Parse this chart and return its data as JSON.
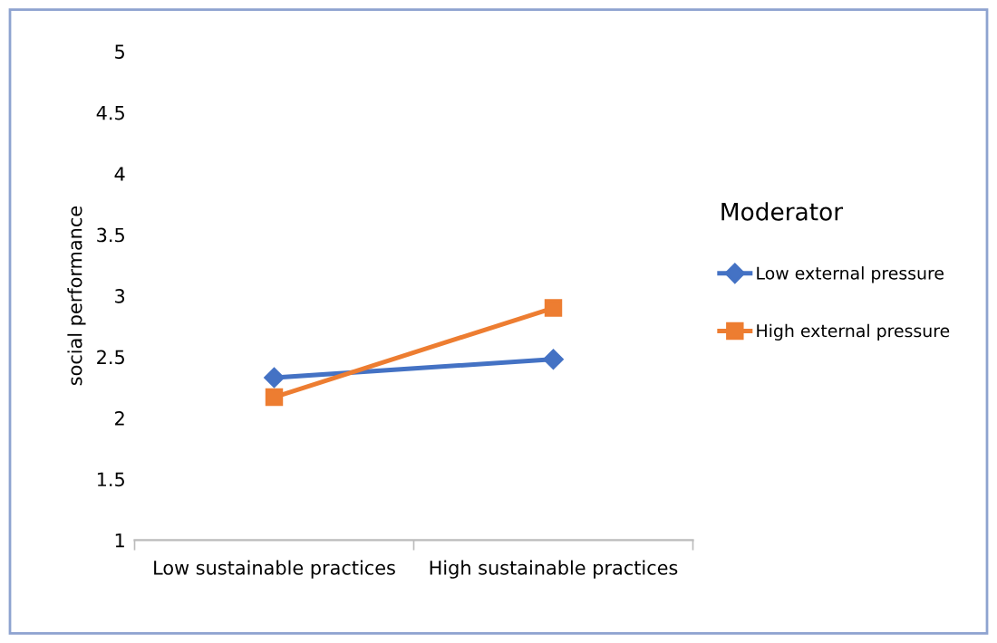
{
  "chart_data": {
    "type": "line",
    "ylabel": "social performance",
    "legend_title": "Moderator",
    "categories": [
      "Low sustainable practices",
      "High sustainable practices"
    ],
    "series": [
      {
        "name": "Low external pressure",
        "color": "#4472c4",
        "values": [
          2.33,
          2.48
        ],
        "marker": "diamond"
      },
      {
        "name": "High external pressure",
        "color": "#ed7d31",
        "values": [
          2.17,
          2.9
        ],
        "marker": "square"
      }
    ],
    "ylim": [
      1,
      5
    ],
    "yticks": [
      1,
      1.5,
      2,
      2.5,
      3,
      3.5,
      4,
      4.5,
      5
    ],
    "grid": false,
    "legend": "right",
    "line_style": "solid"
  }
}
